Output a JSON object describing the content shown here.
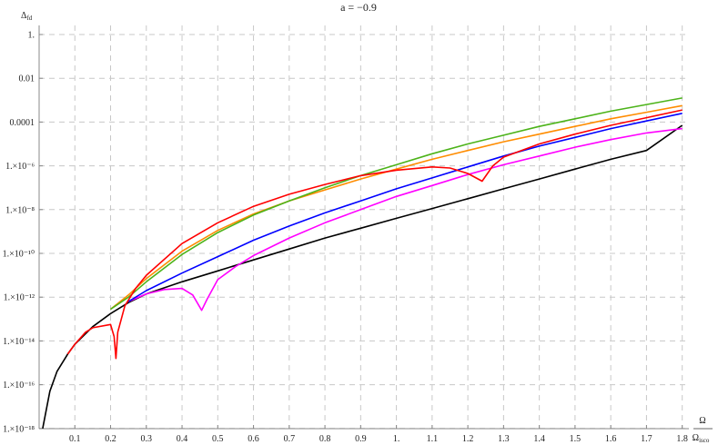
{
  "chart_data": {
    "type": "line",
    "title": "a = −0.9",
    "xlabel": "Ω / Ωisco",
    "ylabel": "Δfd",
    "yscale": "log",
    "xlim": [
      0,
      1.83
    ],
    "ylim": [
      1e-18,
      5
    ],
    "grid": true,
    "x_ticks": [
      "0.1",
      "0.2",
      "0.3",
      "0.4",
      "0.5",
      "0.6",
      "0.7",
      "0.8",
      "0.9",
      "1.",
      "1.1",
      "1.2",
      "1.3",
      "1.4",
      "1.5",
      "1.6",
      "1.7",
      "1.8"
    ],
    "y_ticks": [
      "1.",
      "0.01",
      "0.0001",
      "1.×10⁻⁶",
      "1.×10⁻⁸",
      "1.×10⁻¹⁰",
      "1.×10⁻¹²",
      "1.×10⁻¹⁴",
      "1.×10⁻¹⁶",
      "1.×10⁻¹⁸"
    ],
    "series": [
      {
        "name": "black",
        "color": "#000000",
        "points": [
          [
            0.01,
            -18
          ],
          [
            0.03,
            -16.3
          ],
          [
            0.05,
            -15.4
          ],
          [
            0.08,
            -14.6
          ],
          [
            0.1,
            -14.15
          ],
          [
            0.15,
            -13.35
          ],
          [
            0.2,
            -12.75
          ],
          [
            0.25,
            -12.25
          ],
          [
            0.3,
            -11.85
          ],
          [
            0.4,
            -11.3
          ],
          [
            0.5,
            -10.8
          ],
          [
            0.6,
            -10.3
          ],
          [
            0.7,
            -9.8
          ],
          [
            0.8,
            -9.3
          ],
          [
            0.9,
            -8.85
          ],
          [
            1.0,
            -8.4
          ],
          [
            1.1,
            -7.95
          ],
          [
            1.2,
            -7.5
          ],
          [
            1.3,
            -7.05
          ],
          [
            1.4,
            -6.6
          ],
          [
            1.5,
            -6.15
          ],
          [
            1.6,
            -5.7
          ],
          [
            1.7,
            -5.3
          ],
          [
            1.8,
            -4.15
          ]
        ]
      },
      {
        "name": "magenta",
        "color": "#ff00ff",
        "points": [
          [
            0.25,
            -12.2
          ],
          [
            0.3,
            -11.85
          ],
          [
            0.35,
            -11.65
          ],
          [
            0.4,
            -11.6
          ],
          [
            0.43,
            -11.9
          ],
          [
            0.455,
            -12.6
          ],
          [
            0.47,
            -12.1
          ],
          [
            0.5,
            -11.2
          ],
          [
            0.55,
            -10.6
          ],
          [
            0.6,
            -10.1
          ],
          [
            0.7,
            -9.3
          ],
          [
            0.8,
            -8.6
          ],
          [
            0.9,
            -8.0
          ],
          [
            1.0,
            -7.4
          ],
          [
            1.1,
            -6.9
          ],
          [
            1.2,
            -6.4
          ],
          [
            1.3,
            -5.95
          ],
          [
            1.4,
            -5.55
          ],
          [
            1.5,
            -5.15
          ],
          [
            1.6,
            -4.8
          ],
          [
            1.7,
            -4.5
          ],
          [
            1.8,
            -4.3
          ]
        ]
      },
      {
        "name": "blue",
        "color": "#0000ff",
        "points": [
          [
            0.25,
            -12.2
          ],
          [
            0.3,
            -11.7
          ],
          [
            0.4,
            -10.9
          ],
          [
            0.5,
            -10.15
          ],
          [
            0.6,
            -9.4
          ],
          [
            0.7,
            -8.75
          ],
          [
            0.8,
            -8.15
          ],
          [
            0.9,
            -7.6
          ],
          [
            1.0,
            -7.05
          ],
          [
            1.1,
            -6.55
          ],
          [
            1.2,
            -6.05
          ],
          [
            1.3,
            -5.55
          ],
          [
            1.4,
            -5.1
          ],
          [
            1.5,
            -4.7
          ],
          [
            1.6,
            -4.3
          ],
          [
            1.7,
            -3.95
          ],
          [
            1.8,
            -3.6
          ]
        ]
      },
      {
        "name": "orange",
        "color": "#ff8c00",
        "points": [
          [
            0.2,
            -12.55
          ],
          [
            0.25,
            -11.9
          ],
          [
            0.3,
            -11.15
          ],
          [
            0.4,
            -9.9
          ],
          [
            0.5,
            -8.95
          ],
          [
            0.6,
            -8.2
          ],
          [
            0.7,
            -7.6
          ],
          [
            0.8,
            -7.1
          ],
          [
            0.9,
            -6.6
          ],
          [
            1.0,
            -6.15
          ],
          [
            1.1,
            -5.7
          ],
          [
            1.2,
            -5.3
          ],
          [
            1.3,
            -4.9
          ],
          [
            1.4,
            -4.55
          ],
          [
            1.5,
            -4.2
          ],
          [
            1.6,
            -3.85
          ],
          [
            1.7,
            -3.55
          ],
          [
            1.8,
            -3.25
          ]
        ]
      },
      {
        "name": "green",
        "color": "#4cb319",
        "points": [
          [
            0.2,
            -12.55
          ],
          [
            0.25,
            -12.0
          ],
          [
            0.3,
            -11.3
          ],
          [
            0.4,
            -10.05
          ],
          [
            0.5,
            -9.05
          ],
          [
            0.6,
            -8.25
          ],
          [
            0.7,
            -7.6
          ],
          [
            0.8,
            -7.0
          ],
          [
            0.9,
            -6.45
          ],
          [
            1.0,
            -5.95
          ],
          [
            1.1,
            -5.45
          ],
          [
            1.2,
            -5.0
          ],
          [
            1.3,
            -4.6
          ],
          [
            1.4,
            -4.2
          ],
          [
            1.5,
            -3.85
          ],
          [
            1.6,
            -3.5
          ],
          [
            1.7,
            -3.2
          ],
          [
            1.8,
            -2.9
          ]
        ]
      },
      {
        "name": "red",
        "color": "#ff0000",
        "points": [
          [
            0.08,
            -14.6
          ],
          [
            0.1,
            -14.15
          ],
          [
            0.13,
            -13.6
          ],
          [
            0.15,
            -13.4
          ],
          [
            0.2,
            -13.25
          ],
          [
            0.21,
            -13.8
          ],
          [
            0.215,
            -14.8
          ],
          [
            0.22,
            -13.6
          ],
          [
            0.24,
            -12.4
          ],
          [
            0.27,
            -11.6
          ],
          [
            0.3,
            -11.0
          ],
          [
            0.4,
            -9.55
          ],
          [
            0.5,
            -8.6
          ],
          [
            0.6,
            -7.85
          ],
          [
            0.7,
            -7.3
          ],
          [
            0.8,
            -6.85
          ],
          [
            0.9,
            -6.45
          ],
          [
            1.0,
            -6.2
          ],
          [
            1.1,
            -6.05
          ],
          [
            1.15,
            -6.1
          ],
          [
            1.2,
            -6.35
          ],
          [
            1.24,
            -6.7
          ],
          [
            1.27,
            -6.0
          ],
          [
            1.3,
            -5.6
          ],
          [
            1.4,
            -5.0
          ],
          [
            1.5,
            -4.55
          ],
          [
            1.6,
            -4.15
          ],
          [
            1.7,
            -3.8
          ],
          [
            1.8,
            -3.45
          ]
        ]
      }
    ]
  }
}
